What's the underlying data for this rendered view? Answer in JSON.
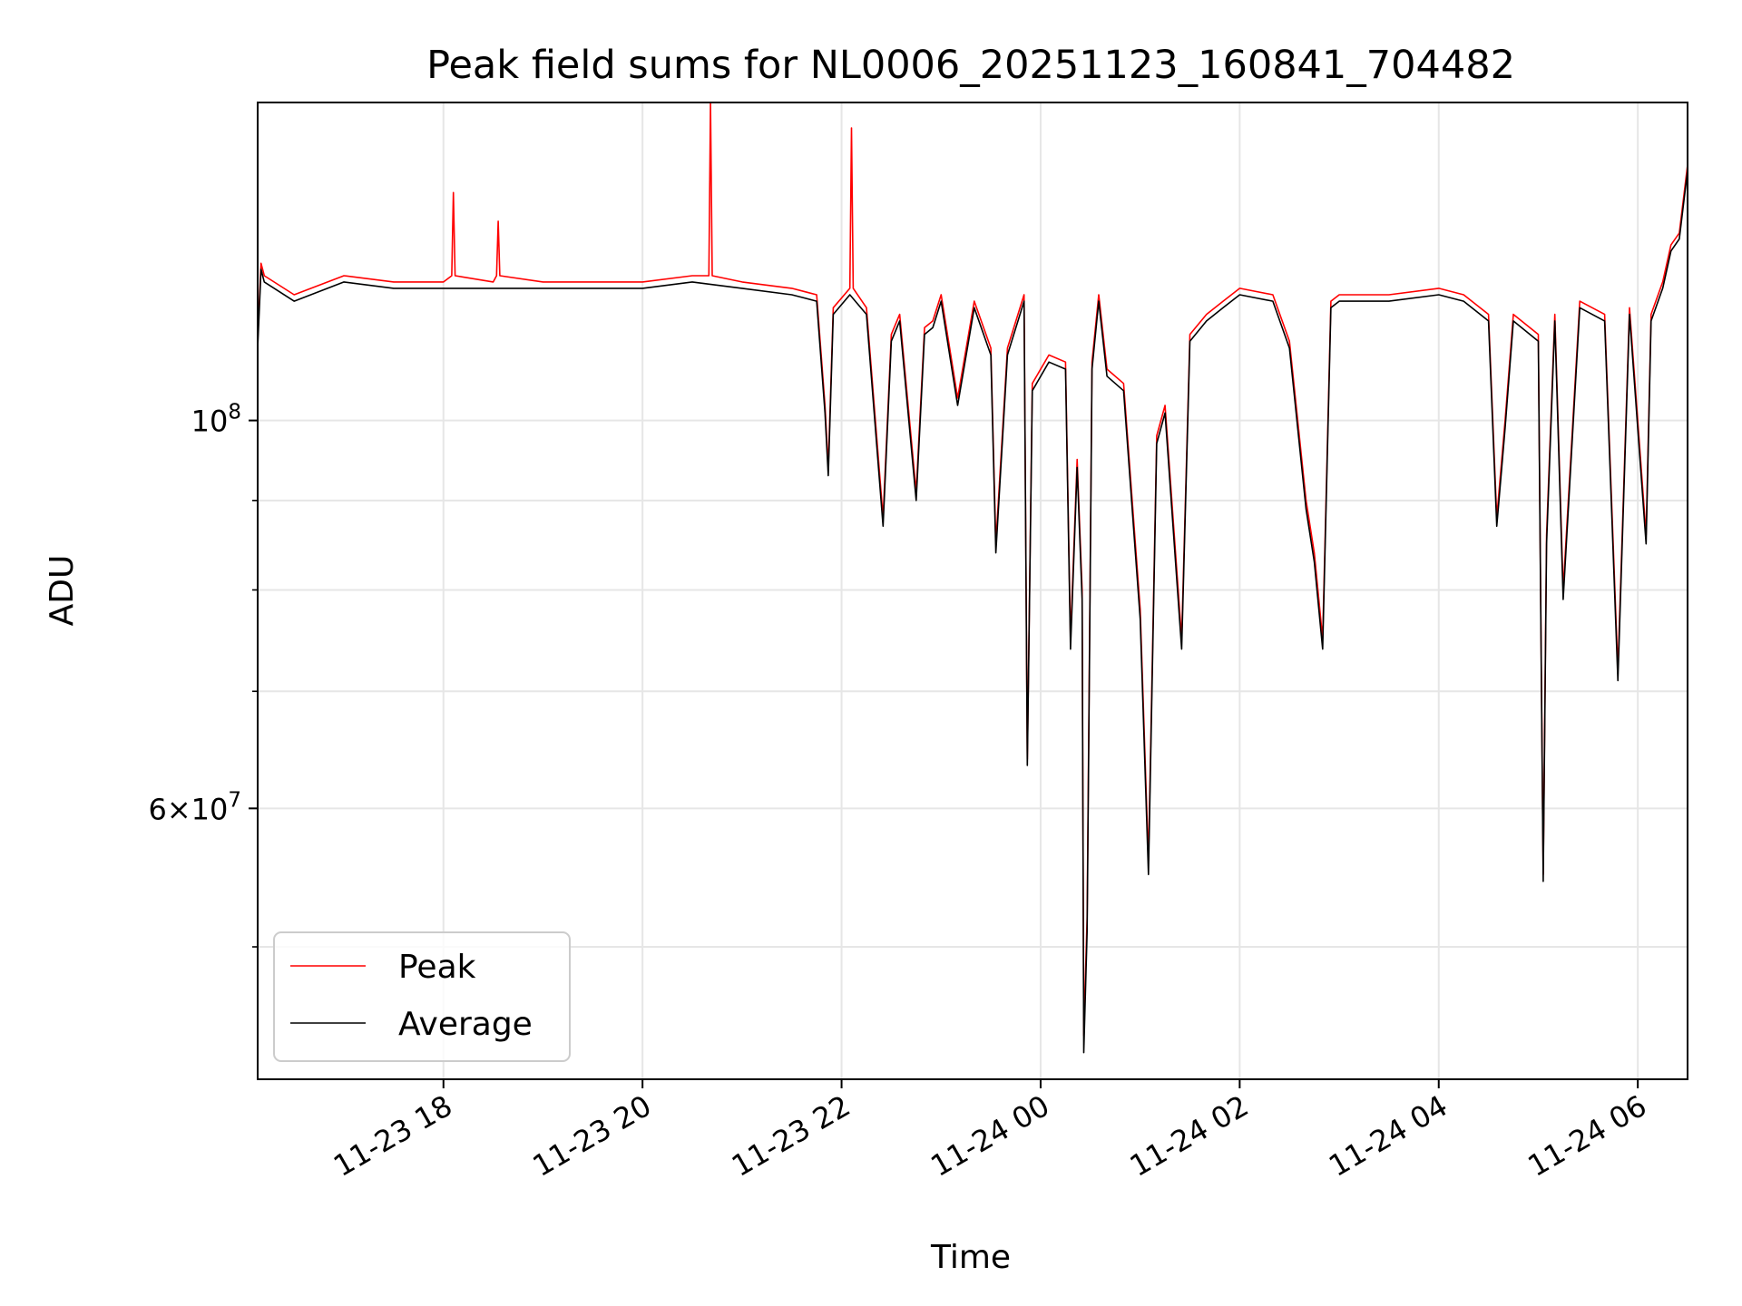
{
  "chart_data": {
    "type": "line",
    "title": "Peak field sums for NL0006_20251123_160841_704482",
    "xlabel": "Time",
    "ylabel": "ADU",
    "yscale": "log",
    "xlim": [
      "2025-11-23 16:08",
      "2025-11-24 06:30"
    ],
    "ylim": [
      42000000,
      152000000
    ],
    "grid": true,
    "legend": "lower-left",
    "x_ticks": [
      {
        "value": "2025-11-23 18:00",
        "label": "11-23 18"
      },
      {
        "value": "2025-11-23 20:00",
        "label": "11-23 20"
      },
      {
        "value": "2025-11-23 22:00",
        "label": "11-23 22"
      },
      {
        "value": "2025-11-24 00:00",
        "label": "11-24 00"
      },
      {
        "value": "2025-11-24 02:00",
        "label": "11-24 02"
      },
      {
        "value": "2025-11-24 04:00",
        "label": "11-24 04"
      },
      {
        "value": "2025-11-24 06:00",
        "label": "11-24 06"
      }
    ],
    "y_ticks_major": [
      {
        "value": 60000000,
        "mantissa": "6",
        "exponent": "7"
      },
      {
        "value": 100000000,
        "mantissa": "",
        "exponent": "8"
      }
    ],
    "y_ticks_minor": [
      50000000,
      70000000,
      80000000,
      90000000
    ],
    "series": [
      {
        "name": "Peak",
        "color": "#ff0000",
        "x": [
          "2025-11-23 16:08",
          "2025-11-23 16:10",
          "2025-11-23 16:12",
          "2025-11-23 16:30",
          "2025-11-23 17:00",
          "2025-11-23 17:30",
          "2025-11-23 18:00",
          "2025-11-23 18:05",
          "2025-11-23 18:06",
          "2025-11-23 18:07",
          "2025-11-23 18:30",
          "2025-11-23 18:32",
          "2025-11-23 18:33",
          "2025-11-23 18:34",
          "2025-11-23 19:00",
          "2025-11-23 19:30",
          "2025-11-23 20:00",
          "2025-11-23 20:30",
          "2025-11-23 20:40",
          "2025-11-23 20:41",
          "2025-11-23 20:42",
          "2025-11-23 21:00",
          "2025-11-23 21:30",
          "2025-11-23 21:45",
          "2025-11-23 21:50",
          "2025-11-23 21:52",
          "2025-11-23 21:55",
          "2025-11-23 22:05",
          "2025-11-23 22:06",
          "2025-11-23 22:07",
          "2025-11-23 22:15",
          "2025-11-23 22:25",
          "2025-11-23 22:30",
          "2025-11-23 22:35",
          "2025-11-23 22:45",
          "2025-11-23 22:50",
          "2025-11-23 22:55",
          "2025-11-23 23:00",
          "2025-11-23 23:10",
          "2025-11-23 23:20",
          "2025-11-23 23:30",
          "2025-11-23 23:33",
          "2025-11-23 23:40",
          "2025-11-23 23:50",
          "2025-11-23 23:52",
          "2025-11-23 23:55",
          "2025-11-24 00:05",
          "2025-11-24 00:15",
          "2025-11-24 00:18",
          "2025-11-24 00:22",
          "2025-11-24 00:25",
          "2025-11-24 00:26",
          "2025-11-24 00:28",
          "2025-11-24 00:31",
          "2025-11-24 00:35",
          "2025-11-24 00:40",
          "2025-11-24 00:50",
          "2025-11-24 01:00",
          "2025-11-24 01:05",
          "2025-11-24 01:10",
          "2025-11-24 01:15",
          "2025-11-24 01:25",
          "2025-11-24 01:30",
          "2025-11-24 01:40",
          "2025-11-24 01:50",
          "2025-11-24 02:00",
          "2025-11-24 02:20",
          "2025-11-24 02:30",
          "2025-11-24 02:40",
          "2025-11-24 02:45",
          "2025-11-24 02:50",
          "2025-11-24 02:55",
          "2025-11-24 03:00",
          "2025-11-24 03:30",
          "2025-11-24 04:00",
          "2025-11-24 04:15",
          "2025-11-24 04:30",
          "2025-11-24 04:35",
          "2025-11-24 04:40",
          "2025-11-24 04:45",
          "2025-11-24 05:00",
          "2025-11-24 05:03",
          "2025-11-24 05:05",
          "2025-11-24 05:10",
          "2025-11-24 05:15",
          "2025-11-24 05:25",
          "2025-11-24 05:40",
          "2025-11-24 05:48",
          "2025-11-24 05:55",
          "2025-11-24 06:05",
          "2025-11-24 06:08",
          "2025-11-24 06:15",
          "2025-11-24 06:20",
          "2025-11-24 06:25",
          "2025-11-24 06:30"
        ],
        "y": [
          111000000,
          123000000,
          121000000,
          118000000,
          121000000,
          120000000,
          120000000,
          121000000,
          135000000,
          121000000,
          120000000,
          121000000,
          130000000,
          121000000,
          120000000,
          120000000,
          120000000,
          121000000,
          121000000,
          152000000,
          121000000,
          120000000,
          119000000,
          118000000,
          102000000,
          94000000,
          116000000,
          119000000,
          147000000,
          119000000,
          116000000,
          88000000,
          112000000,
          115000000,
          91000000,
          113000000,
          114000000,
          118000000,
          103000000,
          117000000,
          110000000,
          85000000,
          110000000,
          118000000,
          64000000,
          105000000,
          109000000,
          108000000,
          75000000,
          95000000,
          80000000,
          44500000,
          52000000,
          108000000,
          118000000,
          107000000,
          105000000,
          78000000,
          56000000,
          98000000,
          102000000,
          75000000,
          112000000,
          115000000,
          117000000,
          119000000,
          118000000,
          111000000,
          90000000,
          84000000,
          75000000,
          117000000,
          118000000,
          118000000,
          119000000,
          118000000,
          115000000,
          88000000,
          100000000,
          115000000,
          112000000,
          55000000,
          86000000,
          115000000,
          80000000,
          117000000,
          115000000,
          72000000,
          116000000,
          86000000,
          115000000,
          120000000,
          126000000,
          128000000,
          140000000
        ]
      },
      {
        "name": "Average",
        "color": "#000000",
        "x": [
          "2025-11-23 16:08",
          "2025-11-23 16:10",
          "2025-11-23 16:12",
          "2025-11-23 16:30",
          "2025-11-23 17:00",
          "2025-11-23 17:30",
          "2025-11-23 18:00",
          "2025-11-23 18:30",
          "2025-11-23 19:00",
          "2025-11-23 19:30",
          "2025-11-23 20:00",
          "2025-11-23 20:30",
          "2025-11-23 21:00",
          "2025-11-23 21:30",
          "2025-11-23 21:45",
          "2025-11-23 21:50",
          "2025-11-23 21:52",
          "2025-11-23 21:55",
          "2025-11-23 22:05",
          "2025-11-23 22:15",
          "2025-11-23 22:25",
          "2025-11-23 22:30",
          "2025-11-23 22:35",
          "2025-11-23 22:45",
          "2025-11-23 22:50",
          "2025-11-23 22:55",
          "2025-11-23 23:00",
          "2025-11-23 23:10",
          "2025-11-23 23:20",
          "2025-11-23 23:30",
          "2025-11-23 23:33",
          "2025-11-23 23:40",
          "2025-11-23 23:50",
          "2025-11-23 23:52",
          "2025-11-23 23:55",
          "2025-11-24 00:05",
          "2025-11-24 00:15",
          "2025-11-24 00:18",
          "2025-11-24 00:22",
          "2025-11-24 00:25",
          "2025-11-24 00:26",
          "2025-11-24 00:28",
          "2025-11-24 00:31",
          "2025-11-24 00:35",
          "2025-11-24 00:40",
          "2025-11-24 00:50",
          "2025-11-24 01:00",
          "2025-11-24 01:05",
          "2025-11-24 01:10",
          "2025-11-24 01:15",
          "2025-11-24 01:25",
          "2025-11-24 01:30",
          "2025-11-24 01:40",
          "2025-11-24 01:50",
          "2025-11-24 02:00",
          "2025-11-24 02:20",
          "2025-11-24 02:30",
          "2025-11-24 02:40",
          "2025-11-24 02:45",
          "2025-11-24 02:50",
          "2025-11-24 02:55",
          "2025-11-24 03:00",
          "2025-11-24 03:30",
          "2025-11-24 04:00",
          "2025-11-24 04:15",
          "2025-11-24 04:30",
          "2025-11-24 04:35",
          "2025-11-24 04:40",
          "2025-11-24 04:45",
          "2025-11-24 05:00",
          "2025-11-24 05:03",
          "2025-11-24 05:05",
          "2025-11-24 05:10",
          "2025-11-24 05:15",
          "2025-11-24 05:25",
          "2025-11-24 05:40",
          "2025-11-24 05:48",
          "2025-11-24 05:55",
          "2025-11-24 06:05",
          "2025-11-24 06:08",
          "2025-11-24 06:15",
          "2025-11-24 06:20",
          "2025-11-24 06:25",
          "2025-11-24 06:30"
        ],
        "y": [
          110000000,
          122000000,
          120000000,
          117000000,
          120000000,
          119000000,
          119000000,
          119000000,
          119000000,
          119000000,
          119000000,
          120000000,
          119000000,
          118000000,
          117000000,
          101000000,
          93000000,
          115000000,
          118000000,
          115000000,
          87000000,
          111000000,
          114000000,
          90000000,
          112000000,
          113000000,
          117000000,
          102000000,
          116000000,
          109000000,
          84000000,
          109000000,
          117000000,
          63500000,
          104000000,
          108000000,
          107000000,
          74000000,
          94000000,
          79000000,
          43500000,
          51000000,
          107000000,
          117000000,
          106000000,
          104000000,
          77000000,
          55000000,
          97000000,
          101000000,
          74000000,
          111000000,
          114000000,
          116000000,
          118000000,
          117000000,
          110000000,
          89000000,
          83000000,
          74000000,
          116000000,
          117000000,
          117000000,
          118000000,
          117000000,
          114000000,
          87000000,
          99000000,
          114000000,
          111000000,
          54500000,
          85000000,
          114000000,
          79000000,
          116000000,
          114000000,
          71000000,
          115000000,
          85000000,
          114000000,
          119000000,
          125000000,
          127000000,
          139000000
        ]
      }
    ]
  }
}
